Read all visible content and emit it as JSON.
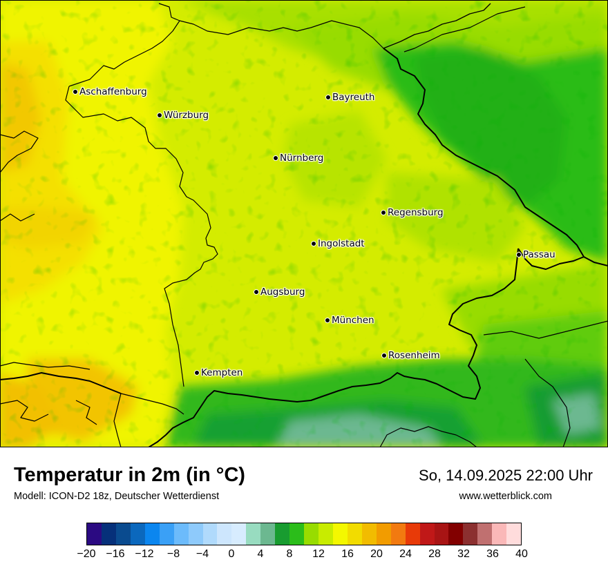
{
  "map": {
    "cities": [
      {
        "name": "Aschaffenburg",
        "key": "aschaffenburg"
      },
      {
        "name": "Würzburg",
        "key": "wuerzburg"
      },
      {
        "name": "Bayreuth",
        "key": "bayreuth"
      },
      {
        "name": "Nürnberg",
        "key": "nuernberg"
      },
      {
        "name": "Regensburg",
        "key": "regensburg"
      },
      {
        "name": "Ingolstadt",
        "key": "ingolstadt"
      },
      {
        "name": "Passau",
        "key": "passau"
      },
      {
        "name": "Augsburg",
        "key": "augsburg"
      },
      {
        "name": "München",
        "key": "muenchen"
      },
      {
        "name": "Rosenheim",
        "key": "rosenheim"
      },
      {
        "name": "Kempten",
        "key": "kempten"
      }
    ]
  },
  "footer": {
    "title": "Temperatur in 2m (in °C)",
    "model": "Modell: ICON-D2 18z, Deutscher Wetterdienst",
    "datetime": "So, 14.09.2025 22:00 Uhr",
    "website": "www.wetterblick.com"
  },
  "colorbar": {
    "colors": [
      "#2b0a82",
      "#06307a",
      "#0a4b8f",
      "#0b68bd",
      "#0b86ef",
      "#3aa0f6",
      "#6cbbfb",
      "#8ecafb",
      "#b0dafc",
      "#cde6fd",
      "#d7ecfe",
      "#98dcc0",
      "#6cb890",
      "#189c30",
      "#2bbd1a",
      "#98dc00",
      "#c8ec00",
      "#f4f800",
      "#f2dc00",
      "#f2bc00",
      "#f29c00",
      "#f27a10",
      "#e83a08",
      "#c01818",
      "#a81414",
      "#820000",
      "#8c3030",
      "#c07070",
      "#fab8b8",
      "#ffdcdc"
    ],
    "tick_labels": [
      "−20",
      "−16",
      "−12",
      "−8",
      "−4",
      "0",
      "4",
      "8",
      "12",
      "16",
      "20",
      "24",
      "28",
      "32",
      "36",
      "40"
    ]
  }
}
